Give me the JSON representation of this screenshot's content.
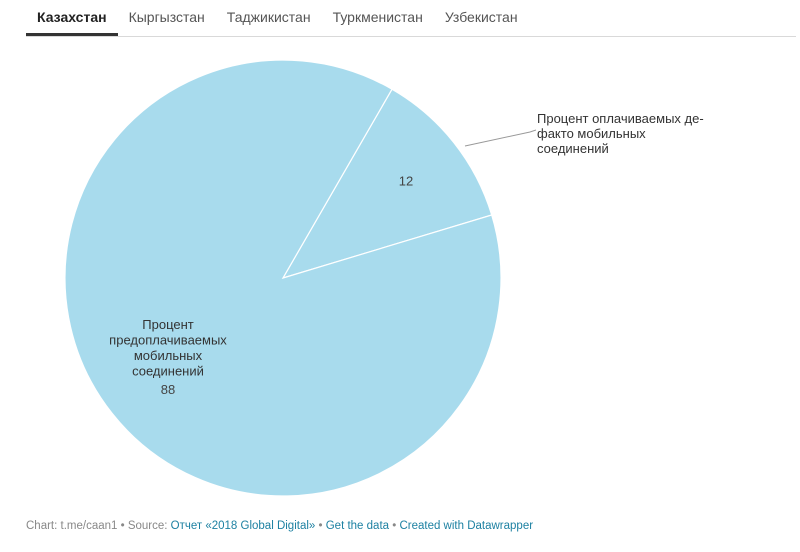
{
  "tabs": [
    {
      "label": "Казахстан",
      "active": true
    },
    {
      "label": "Кыргызстан",
      "active": false
    },
    {
      "label": "Таджикистан",
      "active": false
    },
    {
      "label": "Туркменистан",
      "active": false
    },
    {
      "label": "Узбекистан",
      "active": false
    }
  ],
  "chart_data": {
    "type": "pie",
    "slices": [
      {
        "label_lines": [
          "Процент оплачиваемых де-",
          "факто мобильных",
          "соединений"
        ],
        "value": 12
      },
      {
        "label_lines": [
          "Процент",
          "предоплачиваемых",
          "мобильных",
          "соединений"
        ],
        "value": 88
      }
    ],
    "color": "#a8dbed"
  },
  "footer": {
    "chart_prefix": "Chart: t.me/caan1 • Source: ",
    "source_link": "Отчет «2018 Global Digital»",
    "sep1": " • ",
    "get_data": "Get the data",
    "sep2": " • ",
    "created": "Created with Datawrapper"
  }
}
